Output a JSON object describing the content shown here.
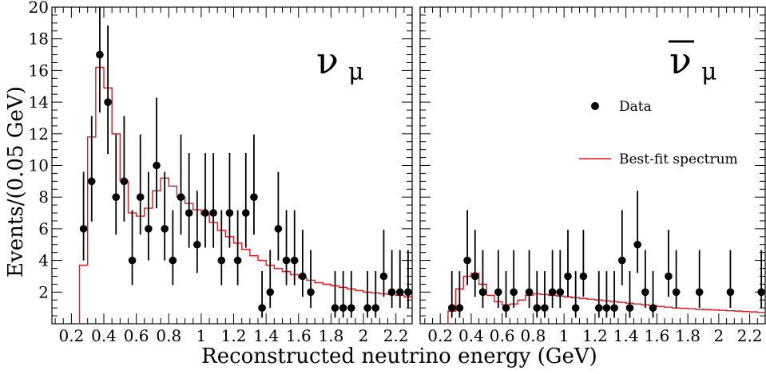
{
  "chart_data": {
    "type": "histogram-with-points",
    "ylabel": "Events/(0.05 GeV)",
    "xlabel": "Reconstructed neutrino energy (GeV)",
    "ylim": [
      0,
      20
    ],
    "y_ticks": [
      "2",
      "4",
      "6",
      "8",
      "10",
      "12",
      "14",
      "16",
      "18",
      "20"
    ],
    "legend": {
      "placement": "right panel, right",
      "entries": [
        {
          "label": "Data",
          "marker": "dot"
        },
        {
          "label": "Best-fit spectrum",
          "marker": "line"
        }
      ]
    },
    "colors": {
      "data": "#000000",
      "fit": "#e8161b"
    },
    "panels": [
      {
        "label_main": "ν",
        "label_sub": "μ",
        "label_bar": false,
        "xlim": [
          0.08,
          2.3
        ],
        "x_ticks": [
          "0.2",
          "0.4",
          "0.6",
          "0.8",
          "1",
          "1.2",
          "1.4",
          "1.6",
          "1.8",
          "2",
          "2.2"
        ],
        "data": {
          "x": [
            0.275,
            0.325,
            0.375,
            0.425,
            0.475,
            0.525,
            0.575,
            0.625,
            0.675,
            0.725,
            0.775,
            0.825,
            0.875,
            0.925,
            0.975,
            1.025,
            1.075,
            1.125,
            1.175,
            1.225,
            1.275,
            1.325,
            1.375,
            1.425,
            1.475,
            1.525,
            1.575,
            1.625,
            1.675,
            1.825,
            1.875,
            1.925,
            2.025,
            2.075,
            2.125,
            2.175,
            2.225,
            2.275
          ],
          "y": [
            6,
            9,
            17,
            14,
            8,
            9,
            4,
            8,
            6,
            10,
            6,
            4,
            8,
            7,
            5,
            7,
            7,
            4,
            7,
            4,
            7,
            8,
            1,
            2,
            6,
            4,
            4,
            3,
            2,
            1,
            1,
            1,
            1,
            1,
            3,
            2,
            2,
            2
          ]
        },
        "fit": {
          "bin_edges": [
            0.25,
            0.3,
            0.35,
            0.4,
            0.45,
            0.5,
            0.55,
            0.6,
            0.65,
            0.7,
            0.75,
            0.8,
            0.85,
            0.9,
            0.95,
            1.0,
            1.05,
            1.1,
            1.15,
            1.2,
            1.25,
            1.3,
            1.35,
            1.4,
            1.45,
            1.5,
            1.55,
            1.6,
            1.65,
            1.7,
            1.75,
            1.8,
            1.85,
            1.9,
            1.95,
            2.0,
            2.05,
            2.1,
            2.15,
            2.2,
            2.25,
            2.3
          ],
          "values": [
            3.7,
            11.8,
            16.2,
            14.9,
            12.0,
            9.0,
            7.0,
            6.8,
            7.3,
            8.4,
            9.2,
            8.7,
            8.0,
            7.6,
            7.2,
            6.9,
            6.4,
            5.9,
            5.5,
            5.1,
            4.7,
            4.3,
            4.0,
            3.7,
            3.5,
            3.3,
            3.1,
            2.9,
            2.75,
            2.6,
            2.5,
            2.4,
            2.3,
            2.2,
            2.1,
            2.0,
            1.95,
            1.9,
            1.85,
            1.8,
            1.7
          ]
        }
      },
      {
        "label_main": "ν",
        "label_sub": "μ",
        "label_bar": true,
        "xlim": [
          0.07,
          2.3
        ],
        "x_ticks": [
          "0.2",
          "0.4",
          "0.6",
          "0.8",
          "1",
          "1.2",
          "1.4",
          "1.6",
          "1.8",
          "2",
          "2.2"
        ],
        "data": {
          "x": [
            0.275,
            0.325,
            0.375,
            0.425,
            0.475,
            0.575,
            0.625,
            0.675,
            0.775,
            0.825,
            0.875,
            0.925,
            0.975,
            1.025,
            1.075,
            1.125,
            1.225,
            1.275,
            1.325,
            1.375,
            1.425,
            1.475,
            1.525,
            1.575,
            1.675,
            1.725,
            1.875,
            2.075,
            2.275
          ],
          "y": [
            1,
            1,
            4,
            3,
            2,
            2,
            1,
            2,
            2,
            1,
            1,
            2,
            2,
            3,
            1,
            3,
            1,
            1,
            1,
            4,
            1,
            5,
            2,
            1,
            3,
            2,
            2,
            2,
            2
          ]
        },
        "fit": {
          "bin_edges": [
            0.25,
            0.3,
            0.35,
            0.4,
            0.45,
            0.5,
            0.55,
            0.6,
            0.65,
            0.7,
            0.75,
            0.8,
            0.85,
            0.9,
            0.95,
            1.0,
            1.05,
            1.1,
            1.15,
            1.2,
            1.25,
            1.3,
            1.35,
            1.4,
            1.45,
            1.5,
            1.55,
            1.6,
            1.65,
            1.7,
            1.75,
            1.8,
            1.85,
            1.9,
            1.95,
            2.0,
            2.05,
            2.1,
            2.15,
            2.2,
            2.25,
            2.3
          ],
          "values": [
            0.8,
            2.2,
            3.0,
            3.2,
            2.5,
            1.8,
            1.4,
            1.2,
            1.25,
            1.5,
            1.8,
            1.9,
            1.85,
            1.8,
            1.75,
            1.7,
            1.65,
            1.6,
            1.55,
            1.5,
            1.45,
            1.4,
            1.35,
            1.3,
            1.25,
            1.2,
            1.15,
            1.1,
            1.05,
            1.0,
            0.98,
            0.95,
            0.92,
            0.9,
            0.87,
            0.85,
            0.82,
            0.8,
            0.77,
            0.75,
            0.72
          ]
        }
      }
    ]
  }
}
